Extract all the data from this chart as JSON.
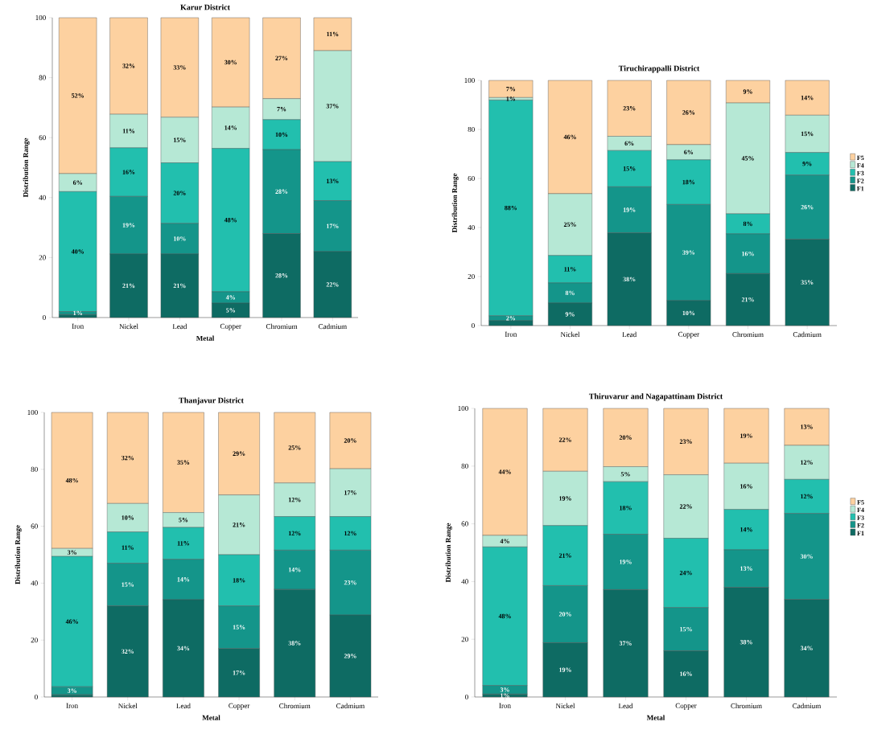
{
  "chart_data": [
    {
      "type": "bar",
      "stacked": true,
      "title": "Karur District",
      "xlabel": "Metal",
      "ylabel": "Distribution Range",
      "categories": [
        "Iron",
        "Nickel",
        "Lead",
        "Copper",
        "Chromium",
        "Cadmium"
      ],
      "ylim": [
        0,
        100
      ],
      "yticks": [
        0,
        20,
        40,
        60,
        80,
        100
      ],
      "legend": false,
      "series": [
        {
          "color": "#0e6b63",
          "values": [
            1,
            21.2,
            21.2,
            4.8,
            28,
            22
          ],
          "value_labels": [
            null,
            "21%",
            "21%",
            "5%",
            "28%",
            "22%"
          ]
        },
        {
          "color": "#14958a",
          "values": [
            1,
            19.2,
            10.2,
            3.8,
            28,
            17
          ],
          "value_labels": [
            "1%",
            "19%",
            "10%",
            "4%",
            "28%",
            "17%"
          ]
        },
        {
          "color": "#22bfae",
          "values": [
            40,
            16.2,
            20.2,
            47.8,
            10,
            13
          ],
          "value_labels": [
            "40%",
            "16%",
            "20%",
            "48%",
            "10%",
            "13%"
          ]
        },
        {
          "color": "#b6e8d5",
          "values": [
            6,
            11.2,
            15.2,
            13.8,
            7,
            37
          ],
          "value_labels": [
            "6%",
            "11%",
            "15%",
            "14%",
            "7%",
            "37%"
          ]
        },
        {
          "color": "#fdd1a0",
          "values": [
            52,
            32.2,
            33.2,
            29.8,
            27,
            11
          ],
          "value_labels": [
            "52%",
            "32%",
            "33%",
            "30%",
            "27%",
            "11%"
          ]
        }
      ]
    },
    {
      "type": "bar",
      "stacked": true,
      "title": "Tiruchirappalli District",
      "ylabel": "Distribution Range",
      "categories": [
        "Iron",
        "Nickel",
        "Lead",
        "Copper",
        "Chromium",
        "Cadmium"
      ],
      "ylim": [
        0,
        100
      ],
      "yticks": [
        0,
        20,
        40,
        60,
        80,
        100
      ],
      "legend": "right",
      "series": [
        {
          "name": "F1",
          "color": "#0e6b63",
          "values": [
            2,
            9.2,
            37.8,
            10.2,
            21.2,
            35.2
          ],
          "value_labels": [
            null,
            "9%",
            "38%",
            "10%",
            "21%",
            "35%"
          ]
        },
        {
          "name": "F2",
          "color": "#14958a",
          "values": [
            2,
            8.2,
            18.8,
            39.2,
            16.2,
            26.2
          ],
          "value_labels": [
            "2%",
            "8%",
            "19%",
            "39%",
            "16%",
            "26%"
          ]
        },
        {
          "name": "F3",
          "color": "#22bfae",
          "values": [
            88,
            11.2,
            14.8,
            18.2,
            8.2,
            9.2
          ],
          "value_labels": [
            "88%",
            "11%",
            "15%",
            "18%",
            "8%",
            "9%"
          ]
        },
        {
          "name": "F4",
          "color": "#b6e8d5",
          "values": [
            1,
            25.2,
            5.8,
            6.2,
            45.2,
            15.2
          ],
          "value_labels": [
            "1%",
            "25%",
            "6%",
            "6%",
            "45%",
            "15%"
          ]
        },
        {
          "name": "F5",
          "color": "#fdd1a0",
          "values": [
            7,
            46.2,
            22.8,
            26.2,
            9.2,
            14.2
          ],
          "value_labels": [
            "7%",
            "46%",
            "23%",
            "26%",
            "9%",
            "14%"
          ]
        }
      ]
    },
    {
      "type": "bar",
      "stacked": true,
      "title": "Thanjavur District",
      "xlabel": "Metal",
      "ylabel": "Distribution Range",
      "categories": [
        "Iron",
        "Nickel",
        "Lead",
        "Copper",
        "Chromium",
        "Cadmium"
      ],
      "ylim": [
        0,
        100
      ],
      "yticks": [
        0,
        20,
        40,
        60,
        80,
        100
      ],
      "legend": false,
      "series": [
        {
          "color": "#0e6b63",
          "values": [
            0.8,
            32,
            34.2,
            17,
            37.8,
            28.8
          ],
          "value_labels": [
            null,
            "32%",
            "34%",
            "17%",
            "38%",
            "29%"
          ]
        },
        {
          "color": "#14958a",
          "values": [
            2.8,
            15,
            14.2,
            15,
            13.8,
            22.8
          ],
          "value_labels": [
            "3%",
            "15%",
            "14%",
            "15%",
            "14%",
            "23%"
          ]
        },
        {
          "color": "#22bfae",
          "values": [
            45.8,
            11,
            11.2,
            18,
            11.8,
            11.8
          ],
          "value_labels": [
            "46%",
            "11%",
            "11%",
            "18%",
            "12%",
            "12%"
          ]
        },
        {
          "color": "#b6e8d5",
          "values": [
            2.8,
            10,
            5.2,
            21,
            11.8,
            16.8
          ],
          "value_labels": [
            "3%",
            "10%",
            "5%",
            "21%",
            "12%",
            "17%"
          ]
        },
        {
          "color": "#fdd1a0",
          "values": [
            47.8,
            32,
            35.2,
            29,
            24.8,
            19.8
          ],
          "value_labels": [
            "48%",
            "32%",
            "35%",
            "29%",
            "25%",
            "20%"
          ]
        }
      ]
    },
    {
      "type": "bar",
      "stacked": true,
      "title": "Thiruvarur and Nagapattinam District",
      "xlabel": "Metal",
      "ylabel": "Distribution Range",
      "categories": [
        "Iron",
        "Nickel",
        "Lead",
        "Copper",
        "Chromium",
        "Cadmium"
      ],
      "ylim": [
        0,
        100
      ],
      "yticks": [
        0,
        20,
        40,
        60,
        80,
        100
      ],
      "legend": "right",
      "series": [
        {
          "name": "F1",
          "color": "#0e6b63",
          "values": [
            1,
            18.8,
            37.2,
            16,
            38,
            33.8
          ],
          "value_labels": [
            "1%",
            "19%",
            "37%",
            "16%",
            "38%",
            "34%"
          ]
        },
        {
          "name": "F2",
          "color": "#14958a",
          "values": [
            3,
            19.8,
            19.2,
            15,
            13,
            29.8
          ],
          "value_labels": [
            "3%",
            "20%",
            "19%",
            "15%",
            "13%",
            "30%"
          ]
        },
        {
          "name": "F3",
          "color": "#22bfae",
          "values": [
            48,
            20.8,
            18.2,
            24,
            14,
            11.8
          ],
          "value_labels": [
            "48%",
            "21%",
            "18%",
            "24%",
            "14%",
            "12%"
          ]
        },
        {
          "name": "F4",
          "color": "#b6e8d5",
          "values": [
            4,
            18.8,
            5.2,
            22,
            16,
            11.8
          ],
          "value_labels": [
            "4%",
            "19%",
            "5%",
            "22%",
            "16%",
            "12%"
          ]
        },
        {
          "name": "F5",
          "color": "#fdd1a0",
          "values": [
            44,
            21.8,
            20.2,
            23,
            19,
            12.8
          ],
          "value_labels": [
            "44%",
            "22%",
            "20%",
            "23%",
            "19%",
            "13%"
          ]
        }
      ]
    }
  ]
}
